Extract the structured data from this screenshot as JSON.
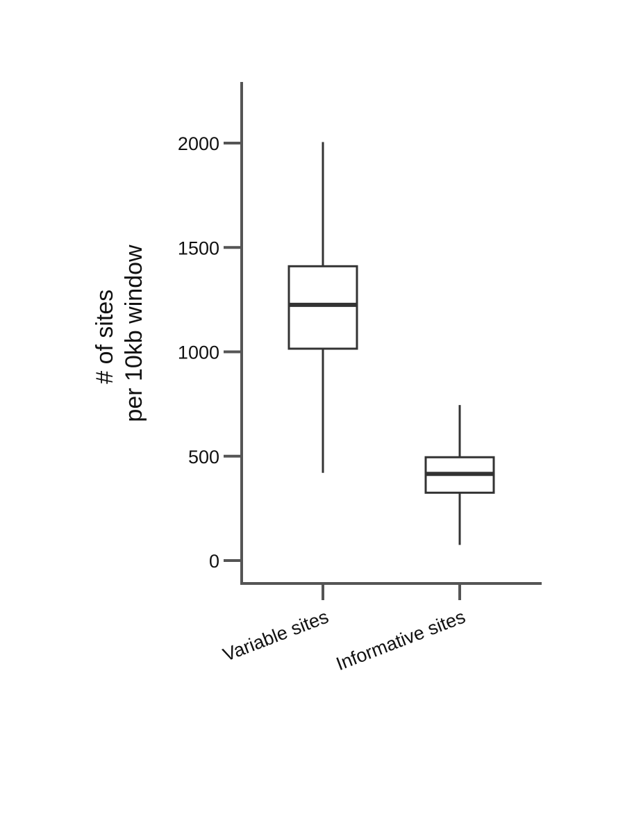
{
  "chart_data": {
    "type": "box",
    "title": "",
    "ylabel_lines": [
      "# of sites",
      "per 10kb window"
    ],
    "xlabel": "",
    "ylim": [
      -100,
      2300
    ],
    "yticks": [
      0,
      500,
      1000,
      1500,
      2000
    ],
    "ytick_labels": [
      "0",
      "500",
      "1000",
      "1500",
      "2000"
    ],
    "grid": false,
    "categories": [
      "Variable sites",
      "Informative sites"
    ],
    "boxes": [
      {
        "category": "Variable sites",
        "min": 420,
        "q1": 1015,
        "median": 1225,
        "q3": 1410,
        "max": 2005
      },
      {
        "category": "Informative sites",
        "min": 75,
        "q1": 325,
        "median": 415,
        "q3": 495,
        "max": 745
      }
    ],
    "colors": {
      "axis": "#555555",
      "box_stroke": "#333333",
      "box_fill": "#ffffff",
      "text": "#111111"
    }
  }
}
